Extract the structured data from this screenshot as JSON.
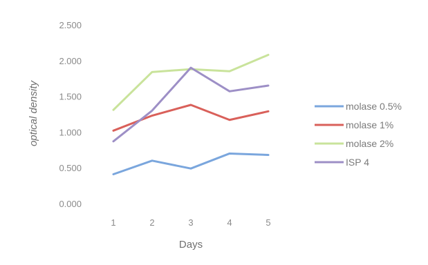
{
  "chart_data": {
    "type": "line",
    "title": "",
    "xlabel": "Days",
    "ylabel": "optical density",
    "x": [
      1,
      2,
      3,
      4,
      5
    ],
    "x_tick_labels": [
      "1",
      "2",
      "3",
      "4",
      "5"
    ],
    "y_tick_labels": [
      "0.000",
      "0.500",
      "1.000",
      "1.500",
      "2.000",
      "2.500"
    ],
    "ylim": [
      0,
      2.5
    ],
    "grid": false,
    "legend_position": "right",
    "series": [
      {
        "name": "molase 0.5%",
        "color": "#7aa6dd",
        "values": [
          0.42,
          0.61,
          0.5,
          0.71,
          0.69
        ]
      },
      {
        "name": "molase 1%",
        "color": "#d9605a",
        "values": [
          1.03,
          1.24,
          1.39,
          1.18,
          1.3
        ]
      },
      {
        "name": "molase 2%",
        "color": "#c9e39b",
        "values": [
          1.32,
          1.85,
          1.89,
          1.86,
          2.09
        ]
      },
      {
        "name": "ISP 4",
        "color": "#9d8fc6",
        "values": [
          0.88,
          1.31,
          1.91,
          1.58,
          1.66
        ]
      }
    ]
  }
}
